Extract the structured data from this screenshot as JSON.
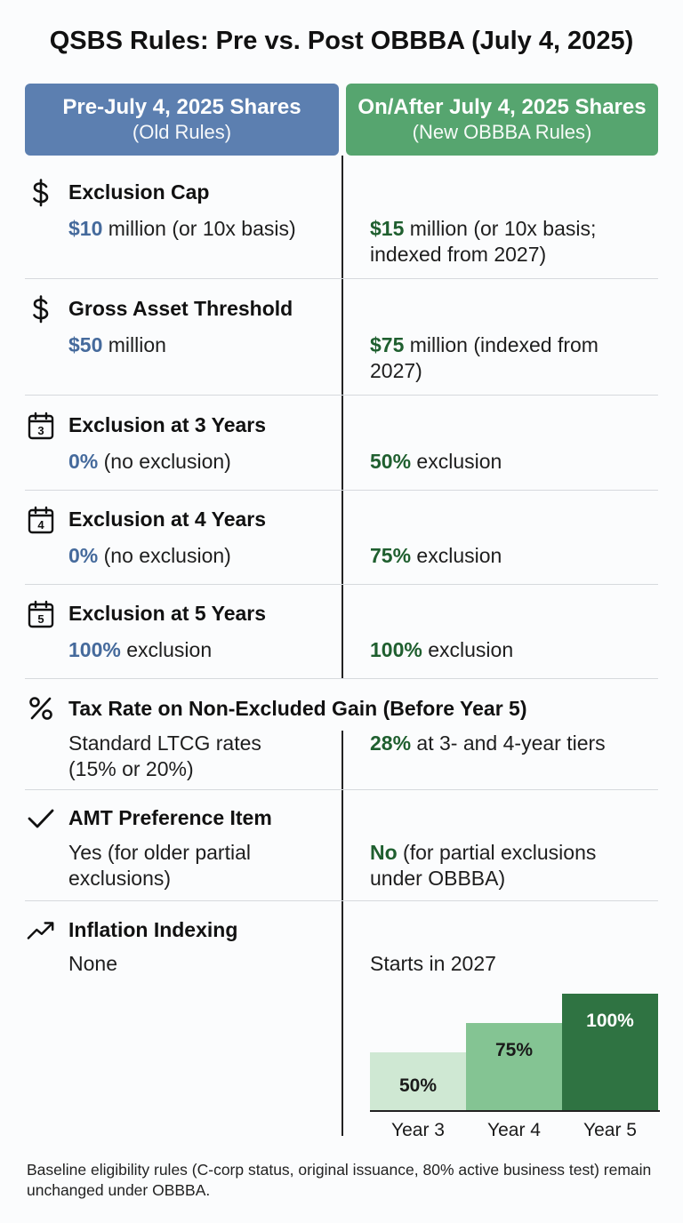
{
  "title": "QSBS Rules: Pre vs. Post OBBBA (July 4, 2025)",
  "headers": {
    "old": {
      "line1": "Pre-July 4, 2025 Shares",
      "line2": "(Old Rules)",
      "color": "#5c7fb0"
    },
    "new": {
      "line1": "On/After July 4, 2025 Shares",
      "line2": "(New OBBBA Rules)",
      "color": "#56a56f"
    }
  },
  "rows": [
    {
      "icon": "dollar-icon",
      "title": "Exclusion Cap",
      "old_value": "$10",
      "old_text": " million (or 10x basis)",
      "new_value": "$15",
      "new_text": " million (or 10x basis; indexed from 2027)"
    },
    {
      "icon": "dollar-icon",
      "title": "Gross Asset Threshold",
      "old_value": "$50",
      "old_text": " million",
      "new_value": "$75",
      "new_text": " million (indexed from 2027)"
    },
    {
      "icon": "calendar-3-icon",
      "icon_label": "3",
      "title": "Exclusion at 3 Years",
      "old_value": "0%",
      "old_text": " (no exclusion)",
      "new_value": "50%",
      "new_text": " exclusion"
    },
    {
      "icon": "calendar-4-icon",
      "icon_label": "4",
      "title": "Exclusion at 4 Years",
      "old_value": "0%",
      "old_text": " (no exclusion)",
      "new_value": "75%",
      "new_text": " exclusion"
    },
    {
      "icon": "calendar-5-icon",
      "icon_label": "5",
      "title": "Exclusion at 5 Years",
      "old_value": "100%",
      "old_text": " exclusion",
      "new_value": "100%",
      "new_text": " exclusion"
    },
    {
      "icon": "percent-icon",
      "title": "Tax Rate on Non-Excluded Gain (Before Year 5)",
      "old_text": "Standard LTCG rates (15% or 20%)",
      "new_value": "28%",
      "new_text": " at 3- and 4-year tiers"
    },
    {
      "icon": "checkmark-icon",
      "title": "AMT Preference Item",
      "old_text": "Yes (for older partial exclusions)",
      "new_value": "No",
      "new_text": " (for partial exclusions under OBBBA)"
    },
    {
      "icon": "trend-up-icon",
      "title": "Inflation Indexing",
      "old_text": "None",
      "new_text": "Starts in 2027"
    }
  ],
  "chart_data": {
    "type": "bar",
    "categories": [
      "Year 3",
      "Year 4",
      "Year 5"
    ],
    "values": [
      50,
      75,
      100
    ],
    "data_labels": [
      "50%",
      "75%",
      "100%"
    ],
    "ylim": [
      0,
      100
    ],
    "colors": [
      "#cfe8d3",
      "#84c493",
      "#2f7342"
    ],
    "label_colors": [
      "#1a1a1a",
      "#1a1a1a",
      "#ffffff"
    ],
    "grid": false
  },
  "footnote": "Baseline eligibility rules (C-corp status, original issuance, 80% active business test) remain unchanged under OBBBA."
}
